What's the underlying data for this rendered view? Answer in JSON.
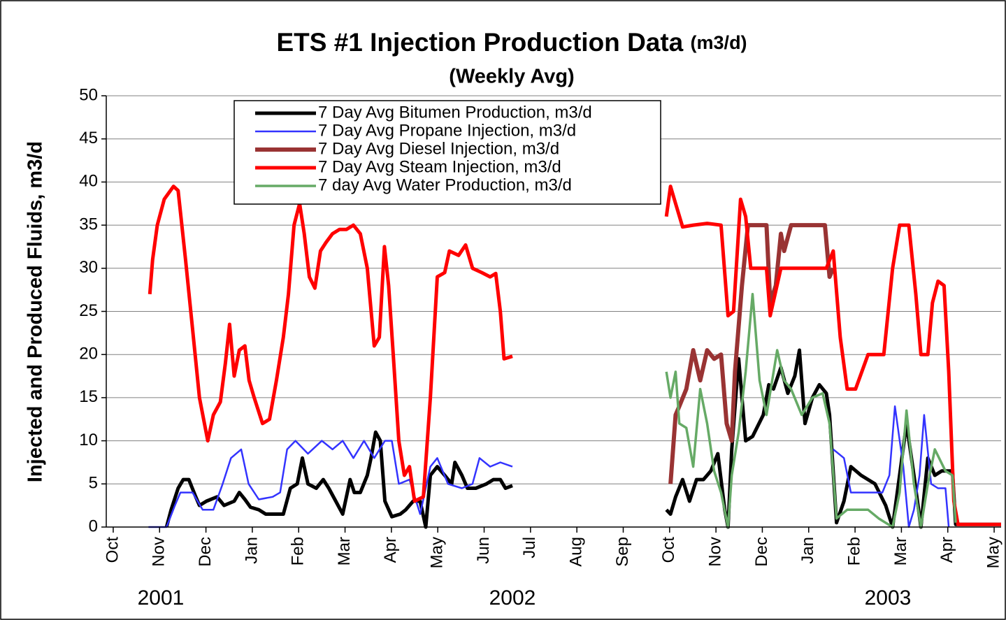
{
  "chart_data": {
    "type": "line",
    "title": "ETS #1 Injection Production Data",
    "title_unit": "(m3/d)",
    "subtitle": "(Weekly Avg)",
    "y_label": "Injected and Produced Fluids, m3/d",
    "year_labels": [
      "2001",
      "2002",
      "2003"
    ],
    "ylim": [
      0,
      50
    ],
    "yticks": [
      0,
      5,
      10,
      15,
      20,
      25,
      30,
      35,
      40,
      45,
      50
    ],
    "xlim": [
      -0.15,
      19.15
    ],
    "xticks": [
      {
        "value": 0,
        "label": "Oct"
      },
      {
        "value": 1,
        "label": "Nov"
      },
      {
        "value": 2,
        "label": "Dec"
      },
      {
        "value": 3,
        "label": "Jan"
      },
      {
        "value": 4,
        "label": "Feb"
      },
      {
        "value": 5,
        "label": "Mar"
      },
      {
        "value": 6,
        "label": "Apr"
      },
      {
        "value": 7,
        "label": "May"
      },
      {
        "value": 8,
        "label": "Jun"
      },
      {
        "value": 9,
        "label": "Jul"
      },
      {
        "value": 10,
        "label": "Aug"
      },
      {
        "value": 11,
        "label": "Sep"
      },
      {
        "value": 12,
        "label": "Oct"
      },
      {
        "value": 13,
        "label": "Nov"
      },
      {
        "value": 14,
        "label": "Dec"
      },
      {
        "value": 15,
        "label": "Jan"
      },
      {
        "value": 16,
        "label": "Feb"
      },
      {
        "value": 17,
        "label": "Mar"
      },
      {
        "value": 18,
        "label": "Apr"
      },
      {
        "value": 19,
        "label": "May"
      }
    ],
    "grid": true,
    "legend": "top-left",
    "series": [
      {
        "name": "7 Day Avg Bitumen Production, m3/d",
        "color": "#000000",
        "width": 5,
        "x": [
          1.15,
          1.25,
          1.4,
          1.51,
          1.63,
          1.78,
          1.86,
          2.01,
          2.24,
          2.39,
          2.61,
          2.72,
          2.84,
          2.96,
          3.14,
          3.29,
          3.52,
          3.67,
          3.82,
          3.97,
          4.08,
          4.2,
          4.38,
          4.53,
          4.65,
          4.8,
          4.95,
          5.11,
          5.2,
          5.33,
          5.48,
          5.56,
          5.66,
          5.76,
          5.86,
          6.01,
          6.19,
          6.31,
          6.47,
          6.62,
          6.74,
          6.84,
          6.99,
          7.15,
          7.3,
          7.37,
          7.52,
          7.64,
          7.82,
          8.05,
          8.2,
          8.35,
          8.46,
          8.61,
          null,
          11.93,
          12.02,
          12.13,
          12.28,
          12.43,
          12.58,
          12.73,
          12.89,
          13.04,
          13.19,
          13.26,
          13.34,
          13.49,
          13.56,
          13.64,
          13.79,
          14.02,
          14.14,
          14.24,
          14.4,
          14.55,
          14.7,
          14.8,
          14.92,
          15.08,
          15.23,
          15.38,
          15.45,
          15.6,
          15.76,
          15.91,
          16.13,
          16.43,
          16.66,
          16.81,
          16.96,
          17.11,
          17.27,
          17.42,
          17.57,
          17.72,
          17.87,
          18.1,
          18.17,
          19.15
        ],
        "values": [
          0,
          2,
          4.5,
          5.5,
          5.5,
          3.5,
          2.5,
          3,
          3.5,
          2.5,
          3,
          4,
          3.2,
          2.3,
          2,
          1.5,
          1.5,
          1.5,
          4.5,
          5,
          8,
          5,
          4.5,
          5.5,
          4.5,
          3,
          1.5,
          5.5,
          4,
          4,
          6,
          8,
          11,
          10,
          3,
          1.2,
          1.5,
          2,
          3,
          3,
          0,
          6,
          7,
          6,
          5,
          7.5,
          6,
          4.5,
          4.5,
          5,
          5.5,
          5.5,
          4.5,
          4.8,
          null,
          2,
          1.5,
          3.5,
          5.5,
          3,
          5.5,
          5.5,
          6.5,
          8.5,
          2,
          0,
          9,
          19.5,
          15,
          10,
          10.5,
          13,
          16.5,
          16,
          18.5,
          15.5,
          17.5,
          20.5,
          12,
          15,
          16.5,
          15.5,
          13,
          0.5,
          3,
          7,
          6,
          5,
          2.5,
          0,
          6,
          12,
          6,
          0,
          8,
          6,
          6.5,
          6.5,
          0.3,
          0.3
        ]
      },
      {
        "name": "7 Day Avg Propane Injection, m3/d",
        "color": "#3333ff",
        "width": 2.5,
        "x": [
          0.76,
          1.15,
          1.33,
          1.45,
          1.71,
          1.93,
          2.16,
          2.36,
          2.54,
          2.76,
          2.92,
          3.14,
          3.44,
          3.6,
          3.75,
          3.93,
          4.2,
          4.5,
          4.73,
          4.95,
          5.18,
          5.41,
          5.63,
          5.86,
          6.01,
          6.16,
          6.39,
          6.62,
          6.84,
          6.99,
          7.22,
          7.52,
          7.75,
          7.9,
          8.13,
          8.35,
          8.61,
          null,
          15.53,
          15.76,
          15.91,
          16.21,
          16.59,
          16.74,
          16.86,
          17.04,
          17.16,
          17.27,
          17.39,
          17.49,
          17.64,
          17.79,
          17.95,
          18.02
        ],
        "values": [
          0,
          0,
          2.5,
          4,
          4,
          2,
          2,
          5,
          8,
          9,
          5,
          3.2,
          3.5,
          4,
          9,
          10,
          8.5,
          10,
          9,
          10,
          8,
          10,
          8,
          10,
          10,
          5,
          5.5,
          1.5,
          7,
          8,
          5,
          4.5,
          5,
          8,
          7,
          7.5,
          7,
          null,
          9,
          8,
          4,
          4,
          4,
          6,
          14,
          7,
          0,
          2,
          6,
          13,
          5,
          4.5,
          4.5,
          0
        ]
      },
      {
        "name": "7 Day Avg Diesel Injection, m3/d",
        "color": "#993333",
        "width": 6,
        "x": [
          12.02,
          12.13,
          12.21,
          12.36,
          12.51,
          12.66,
          12.81,
          12.96,
          13.11,
          13.23,
          13.34,
          13.41,
          13.56,
          13.69,
          14.09,
          14.17,
          14.29,
          14.4,
          14.47,
          14.62,
          15.35,
          15.45,
          15.53
        ],
        "values": [
          5,
          13,
          14,
          16,
          20.5,
          17,
          20.5,
          19.5,
          20,
          12,
          10,
          18,
          28,
          35,
          35,
          26,
          28,
          34,
          32,
          35,
          35,
          29,
          30
        ]
      },
      {
        "name": "7 Day Avg Steam Injection, m3/d",
        "color": "#ff0000",
        "width": 5,
        "x": [
          0.79,
          0.85,
          0.95,
          1.1,
          1.3,
          1.4,
          1.56,
          1.71,
          1.86,
          2.04,
          2.16,
          2.31,
          2.42,
          2.51,
          2.61,
          2.72,
          2.84,
          2.93,
          3.04,
          3.22,
          3.37,
          3.52,
          3.67,
          3.78,
          3.9,
          4.02,
          4.12,
          4.23,
          4.35,
          4.47,
          4.59,
          4.73,
          4.88,
          5.03,
          5.18,
          5.33,
          5.48,
          5.63,
          5.74,
          5.85,
          5.94,
          6.04,
          6.16,
          6.28,
          6.39,
          6.5,
          6.69,
          6.84,
          6.99,
          7.15,
          7.25,
          7.45,
          7.6,
          7.75,
          7.95,
          8.13,
          8.25,
          8.35,
          8.43,
          8.61,
          null,
          11.93,
          12.02,
          12.13,
          12.28,
          12.51,
          12.81,
          13.11,
          13.26,
          13.38,
          13.53,
          13.64,
          13.75,
          14.09,
          14.17,
          14.4,
          14.92,
          15.38,
          15.53,
          15.68,
          15.83,
          16.01,
          16.28,
          16.62,
          16.81,
          16.96,
          17.16,
          17.31,
          17.42,
          17.57,
          17.67,
          17.79,
          17.92,
          18.02,
          18.13,
          18.22,
          19.15
        ],
        "values": [
          27,
          31,
          35,
          38,
          39.5,
          39,
          31,
          23,
          15,
          10,
          13,
          14.5,
          19,
          23.5,
          17.5,
          20.5,
          21,
          17,
          15,
          12,
          12.5,
          17,
          22,
          27,
          35,
          37.5,
          34,
          29,
          27.7,
          32,
          33,
          34,
          34.5,
          34.5,
          35,
          34,
          30,
          21,
          22,
          32.5,
          28,
          20,
          10,
          6,
          7,
          3,
          3.5,
          15,
          29,
          29.5,
          32,
          31.5,
          32.7,
          30,
          29.5,
          29,
          29.4,
          25,
          19.5,
          19.8,
          null,
          36,
          39.5,
          37.5,
          34.8,
          35,
          35.2,
          35,
          24.5,
          25,
          38,
          36,
          30,
          30,
          24.5,
          30,
          30,
          30,
          32,
          22,
          16,
          16,
          20,
          20,
          30,
          35,
          35,
          27,
          20,
          20,
          26,
          28.5,
          28,
          18,
          3,
          0.3,
          0.3
        ]
      },
      {
        "name": "7 day Avg Water Production, m3/d",
        "color": "#66aa66",
        "width": 3.5,
        "x": [
          11.93,
          12.02,
          12.13,
          12.21,
          12.36,
          12.51,
          12.66,
          12.81,
          12.96,
          13.11,
          13.26,
          13.34,
          13.49,
          13.64,
          13.79,
          13.94,
          14.09,
          14.32,
          14.47,
          14.62,
          14.85,
          15.08,
          15.3,
          15.45,
          15.6,
          15.83,
          16.28,
          16.51,
          16.81,
          16.96,
          17.11,
          17.27,
          17.42,
          17.57,
          17.72,
          17.95,
          18.1,
          18.17
        ],
        "values": [
          18,
          15,
          18,
          12,
          11.5,
          7,
          16,
          12,
          6.5,
          4,
          0,
          6,
          11,
          18,
          27,
          17,
          13,
          20.5,
          17,
          16,
          13,
          15,
          15.5,
          12,
          1,
          2,
          2,
          1,
          0,
          4,
          13.5,
          5,
          0,
          5,
          9,
          6.5,
          6,
          0.5
        ]
      }
    ]
  }
}
